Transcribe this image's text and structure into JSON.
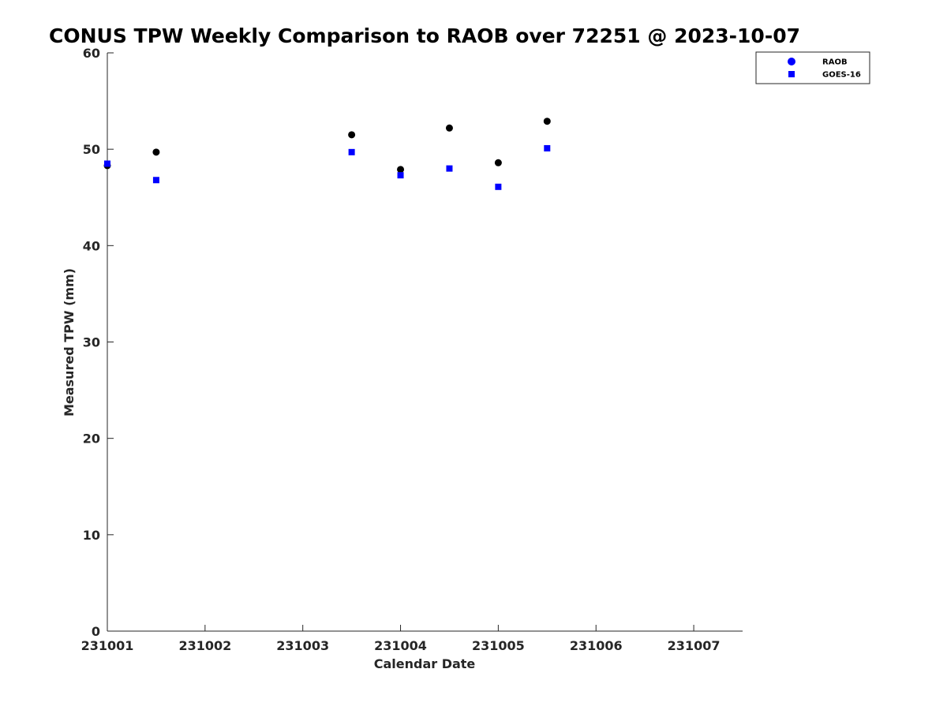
{
  "chart_data": {
    "type": "scatter",
    "title": "CONUS TPW Weekly Comparison to RAOB over 72251 @ 2023-10-07",
    "xlabel": "Calendar Date",
    "ylabel": "Measured TPW (mm)",
    "xlim": [
      0,
      6.5
    ],
    "ylim": [
      0,
      60
    ],
    "x_ticks": [
      {
        "value": 0,
        "label": "231001"
      },
      {
        "value": 1,
        "label": "231002"
      },
      {
        "value": 2,
        "label": "231003"
      },
      {
        "value": 3,
        "label": "231004"
      },
      {
        "value": 4,
        "label": "231005"
      },
      {
        "value": 5,
        "label": "231006"
      },
      {
        "value": 6,
        "label": "231007"
      }
    ],
    "y_ticks": [
      {
        "value": 0,
        "label": "0"
      },
      {
        "value": 10,
        "label": "10"
      },
      {
        "value": 20,
        "label": "20"
      },
      {
        "value": 30,
        "label": "30"
      },
      {
        "value": 40,
        "label": "40"
      },
      {
        "value": 50,
        "label": "50"
      },
      {
        "value": 60,
        "label": "60"
      }
    ],
    "legend_position": "top-right",
    "series": [
      {
        "name": "RAOB",
        "marker": "circle",
        "color": "#000000",
        "legend_color": "#0000ff",
        "points": [
          {
            "x": 0.0,
            "y": 48.3
          },
          {
            "x": 0.5,
            "y": 49.7
          },
          {
            "x": 2.5,
            "y": 51.5
          },
          {
            "x": 3.0,
            "y": 47.9
          },
          {
            "x": 3.5,
            "y": 52.2
          },
          {
            "x": 4.0,
            "y": 48.6
          },
          {
            "x": 4.5,
            "y": 52.9
          }
        ]
      },
      {
        "name": "GOES-16",
        "marker": "square",
        "color": "#0000ff",
        "legend_color": "#0000ff",
        "points": [
          {
            "x": 0.0,
            "y": 48.5
          },
          {
            "x": 0.5,
            "y": 46.8
          },
          {
            "x": 2.5,
            "y": 49.7
          },
          {
            "x": 3.0,
            "y": 47.3
          },
          {
            "x": 3.5,
            "y": 48.0
          },
          {
            "x": 4.0,
            "y": 46.1
          },
          {
            "x": 4.5,
            "y": 50.1
          }
        ]
      }
    ]
  }
}
